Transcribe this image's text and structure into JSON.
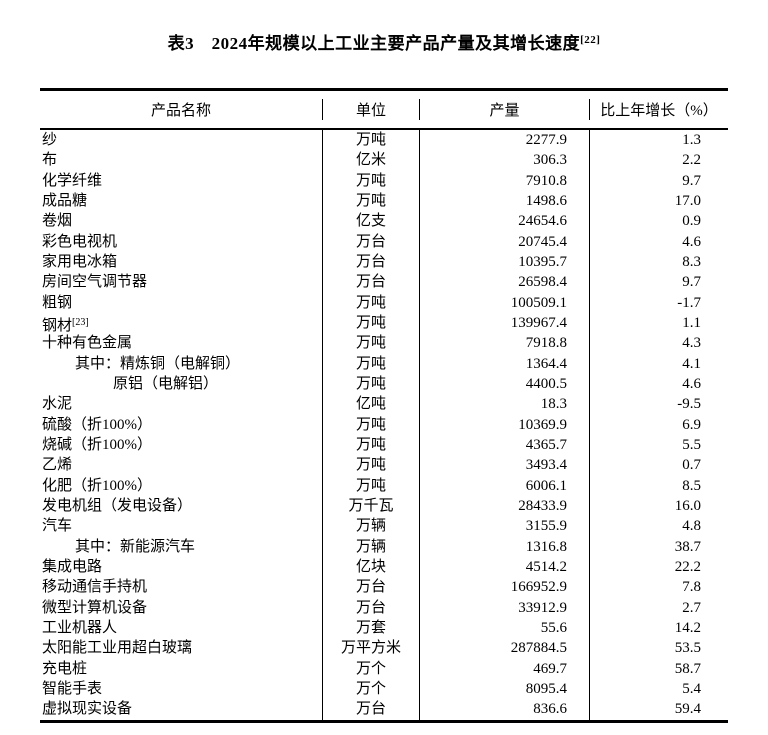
{
  "title": {
    "text": "表3　2024年规模以上工业主要产品产量及其增长速度",
    "footnote_ref": "[22]"
  },
  "table": {
    "headers": {
      "product_name": "产品名称",
      "unit": "单位",
      "output": "产量",
      "growth": "比上年增长（%）"
    },
    "rows": [
      {
        "name": "纱",
        "sup": "",
        "indent": 0,
        "unit": "万吨",
        "output": "2277.9",
        "growth": "1.3"
      },
      {
        "name": "布",
        "sup": "",
        "indent": 0,
        "unit": "亿米",
        "output": "306.3",
        "growth": "2.2"
      },
      {
        "name": "化学纤维",
        "sup": "",
        "indent": 0,
        "unit": "万吨",
        "output": "7910.8",
        "growth": "9.7"
      },
      {
        "name": "成品糖",
        "sup": "",
        "indent": 0,
        "unit": "万吨",
        "output": "1498.6",
        "growth": "17.0"
      },
      {
        "name": "卷烟",
        "sup": "",
        "indent": 0,
        "unit": "亿支",
        "output": "24654.6",
        "growth": "0.9"
      },
      {
        "name": "彩色电视机",
        "sup": "",
        "indent": 0,
        "unit": "万台",
        "output": "20745.4",
        "growth": "4.6"
      },
      {
        "name": "家用电冰箱",
        "sup": "",
        "indent": 0,
        "unit": "万台",
        "output": "10395.7",
        "growth": "8.3"
      },
      {
        "name": "房间空气调节器",
        "sup": "",
        "indent": 0,
        "unit": "万台",
        "output": "26598.4",
        "growth": "9.7"
      },
      {
        "name": "粗钢",
        "sup": "",
        "indent": 0,
        "unit": "万吨",
        "output": "100509.1",
        "growth": "-1.7"
      },
      {
        "name": "钢材",
        "sup": "[23]",
        "indent": 0,
        "unit": "万吨",
        "output": "139967.4",
        "growth": "1.1"
      },
      {
        "name": "十种有色金属",
        "sup": "",
        "indent": 0,
        "unit": "万吨",
        "output": "7918.8",
        "growth": "4.3"
      },
      {
        "name": "其中：精炼铜（电解铜）",
        "sup": "",
        "indent": 1,
        "unit": "万吨",
        "output": "1364.4",
        "growth": "4.1"
      },
      {
        "name": "原铝（电解铝）",
        "sup": "",
        "indent": 2,
        "unit": "万吨",
        "output": "4400.5",
        "growth": "4.6"
      },
      {
        "name": "水泥",
        "sup": "",
        "indent": 0,
        "unit": "亿吨",
        "output": "18.3",
        "growth": "-9.5"
      },
      {
        "name": "硫酸（折100%）",
        "sup": "",
        "indent": 0,
        "unit": "万吨",
        "output": "10369.9",
        "growth": "6.9"
      },
      {
        "name": "烧碱（折100%）",
        "sup": "",
        "indent": 0,
        "unit": "万吨",
        "output": "4365.7",
        "growth": "5.5"
      },
      {
        "name": "乙烯",
        "sup": "",
        "indent": 0,
        "unit": "万吨",
        "output": "3493.4",
        "growth": "0.7"
      },
      {
        "name": "化肥（折100%）",
        "sup": "",
        "indent": 0,
        "unit": "万吨",
        "output": "6006.1",
        "growth": "8.5"
      },
      {
        "name": "发电机组（发电设备）",
        "sup": "",
        "indent": 0,
        "unit": "万千瓦",
        "output": "28433.9",
        "growth": "16.0"
      },
      {
        "name": "汽车",
        "sup": "",
        "indent": 0,
        "unit": "万辆",
        "output": "3155.9",
        "growth": "4.8"
      },
      {
        "name": "其中：新能源汽车",
        "sup": "",
        "indent": 1,
        "unit": "万辆",
        "output": "1316.8",
        "growth": "38.7"
      },
      {
        "name": "集成电路",
        "sup": "",
        "indent": 0,
        "unit": "亿块",
        "output": "4514.2",
        "growth": "22.2"
      },
      {
        "name": "移动通信手持机",
        "sup": "",
        "indent": 0,
        "unit": "万台",
        "output": "166952.9",
        "growth": "7.8"
      },
      {
        "name": "微型计算机设备",
        "sup": "",
        "indent": 0,
        "unit": "万台",
        "output": "33912.9",
        "growth": "2.7"
      },
      {
        "name": "工业机器人",
        "sup": "",
        "indent": 0,
        "unit": "万套",
        "output": "55.6",
        "growth": "14.2"
      },
      {
        "name": "太阳能工业用超白玻璃",
        "sup": "",
        "indent": 0,
        "unit": "万平方米",
        "output": "287884.5",
        "growth": "53.5"
      },
      {
        "name": "充电桩",
        "sup": "",
        "indent": 0,
        "unit": "万个",
        "output": "469.7",
        "growth": "58.7"
      },
      {
        "name": "智能手表",
        "sup": "",
        "indent": 0,
        "unit": "万个",
        "output": "8095.4",
        "growth": "5.4"
      },
      {
        "name": "虚拟现实设备",
        "sup": "",
        "indent": 0,
        "unit": "万台",
        "output": "836.6",
        "growth": "59.4"
      }
    ]
  },
  "colors": {
    "text": "#000000",
    "background": "#ffffff",
    "border": "#000000"
  }
}
